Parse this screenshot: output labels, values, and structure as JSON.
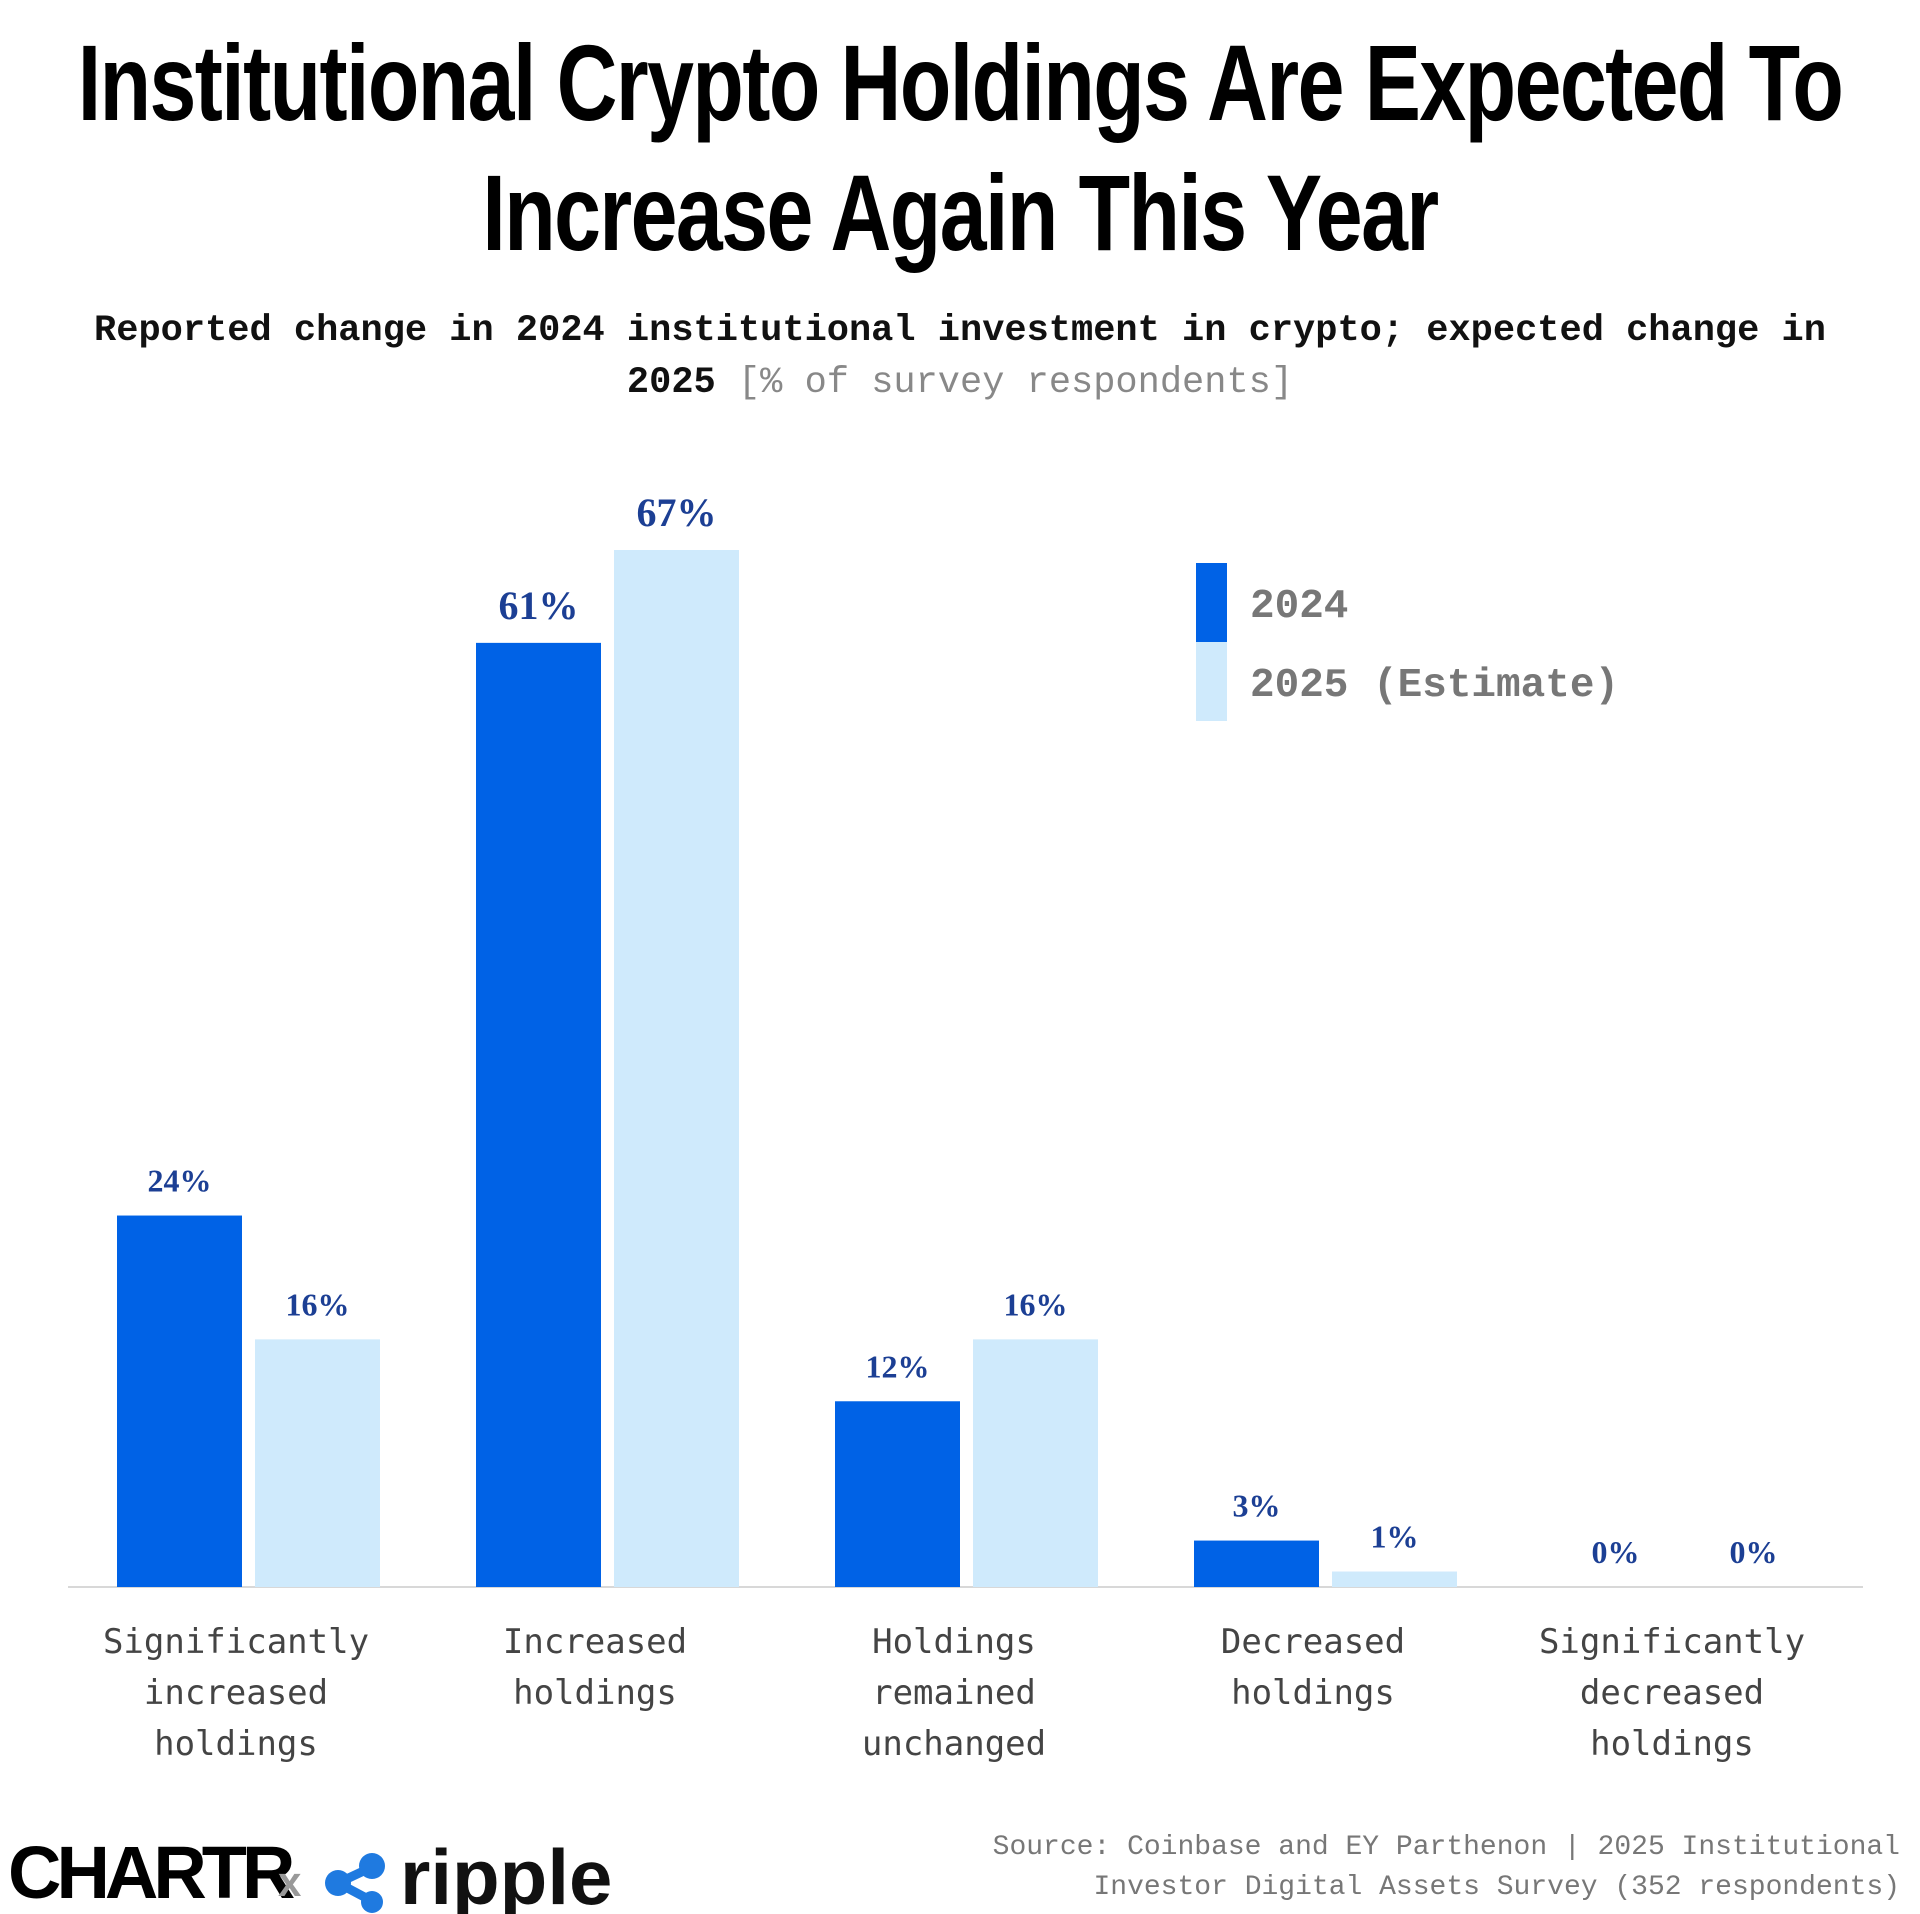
{
  "chart_data": {
    "type": "bar",
    "title": "Institutional Crypto Holdings Are Expected To Increase Again This Year",
    "subtitle": "Reported change in 2024 institutional investment in crypto; expected change in 2025",
    "subtitle_unit": "[% of survey respondents]",
    "categories": [
      "Significantly\nincreased\nholdings",
      "Increased\nholdings",
      "Holdings\nremained\nunchanged",
      "Decreased\nholdings",
      "Significantly\ndecreased\nholdings"
    ],
    "series": [
      {
        "name": "2024",
        "color": "#0062e6",
        "values": [
          24,
          61,
          12,
          3,
          0
        ],
        "value_labels": [
          "24%",
          "61%",
          "12%",
          "3%",
          "0%"
        ]
      },
      {
        "name": "2025 (Estimate)",
        "color": "#cfeafc",
        "values": [
          16,
          67,
          16,
          1,
          0
        ],
        "value_labels": [
          "16%",
          "67%",
          "16%",
          "1%",
          "0%"
        ]
      }
    ],
    "source": "Source: Coinbase and EY Parthenon | 2025 Institutional Investor Digital Assets Survey (352 respondents)",
    "brand": {
      "chartr": "CHARTR",
      "separator": "x",
      "partner": "ripple"
    }
  }
}
